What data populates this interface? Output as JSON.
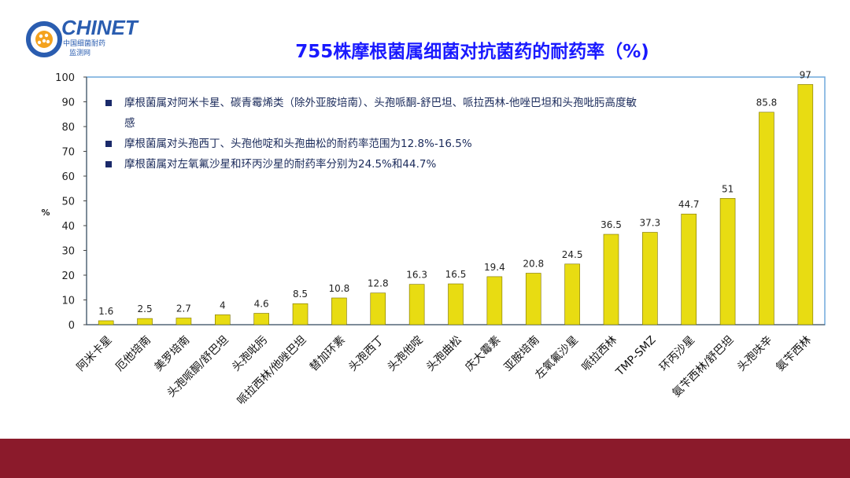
{
  "logo": {
    "brand": "CHINET",
    "subtitle_line1": "中国细菌耐药",
    "subtitle_line2": "监测网"
  },
  "chart_data": {
    "type": "bar",
    "title": "755株摩根菌属细菌对抗菌药的耐药率（%)",
    "ylabel": "%",
    "xlabel": "",
    "ylim": [
      0,
      100
    ],
    "yticks": [
      0,
      10,
      20,
      30,
      40,
      50,
      60,
      70,
      80,
      90,
      100
    ],
    "categories": [
      "阿米卡星",
      "厄他培南",
      "美罗培南",
      "头孢哌酮/舒巴坦",
      "头孢吡肟",
      "哌拉西林/他唑巴坦",
      "替加环素",
      "头孢西丁",
      "头孢他啶",
      "头孢曲松",
      "庆大霉素",
      "亚胺培南",
      "左氧氟沙星",
      "哌拉西林",
      "TMP-SMZ",
      "环丙沙星",
      "氨苄西林/舒巴坦",
      "头孢呋辛",
      "氨苄西林"
    ],
    "values": [
      1.6,
      2.5,
      2.7,
      4,
      4.6,
      8.5,
      10.8,
      12.8,
      16.3,
      16.5,
      19.4,
      20.8,
      24.5,
      36.5,
      37.3,
      44.7,
      51,
      85.8,
      97
    ],
    "bar_color": "#e8dc12",
    "grid": false,
    "legend": "none"
  },
  "notes": [
    "摩根菌属对阿米卡星、碳青霉烯类（除外亚胺培南）、头孢哌酮-舒巴坦、哌拉西林-他唑巴坦和头孢吡肟高度敏感",
    "摩根菌属对头孢西丁、头孢他啶和头孢曲松的耐药率范围为12.8%-16.5%",
    "摩根菌属对左氧氟沙星和环丙沙星的耐药率分别为24.5%和44.7%"
  ],
  "colors": {
    "title": "#1a1aff",
    "footer_bar": "#8b1a2b",
    "plot_border": "#6fa8dc",
    "logo_blue": "#2a5db0"
  }
}
